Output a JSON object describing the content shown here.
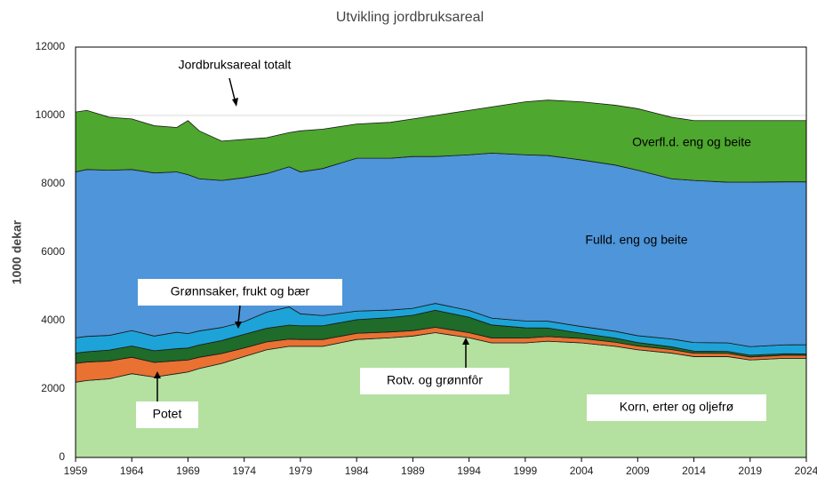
{
  "chart_data": {
    "type": "stacked-area",
    "title": "Utvikling jordbruksareal",
    "ylabel": "1000 dekar",
    "annotation": "Jordbruksareal totalt",
    "x": [
      1959,
      1960,
      1962,
      1964,
      1966,
      1968,
      1969,
      1970,
      1972,
      1974,
      1976,
      1978,
      1979,
      1981,
      1984,
      1987,
      1989,
      1991,
      1994,
      1996,
      1999,
      2001,
      2004,
      2007,
      2009,
      2012,
      2014,
      2017,
      2019,
      2022,
      2024
    ],
    "series": [
      {
        "name": "Korn, erter og oljefrø",
        "color": "#b4e0a0",
        "values": [
          2200,
          2250,
          2300,
          2450,
          2350,
          2450,
          2500,
          2600,
          2750,
          2950,
          3150,
          3250,
          3250,
          3250,
          3450,
          3500,
          3550,
          3650,
          3500,
          3350,
          3350,
          3400,
          3350,
          3250,
          3150,
          3050,
          2950,
          2950,
          2850,
          2900,
          2900
        ]
      },
      {
        "name": "Potet",
        "color": "#e97132",
        "values": [
          550,
          540,
          520,
          480,
          430,
          380,
          350,
          330,
          290,
          250,
          230,
          210,
          200,
          200,
          180,
          170,
          160,
          155,
          150,
          145,
          140,
          135,
          130,
          120,
          110,
          105,
          100,
          95,
          90,
          88,
          85
        ]
      },
      {
        "name": "Rotv. og grønnfôr",
        "color": "#1e6b2a",
        "values": [
          300,
          300,
          320,
          330,
          340,
          350,
          350,
          360,
          380,
          400,
          400,
          410,
          400,
          400,
          400,
          420,
          450,
          500,
          450,
          380,
          300,
          250,
          150,
          120,
          100,
          80,
          60,
          55,
          50,
          45,
          40
        ]
      },
      {
        "name": "Grønnsaker, frukt og bær",
        "color": "#1ea3d8",
        "values": [
          450,
          450,
          430,
          450,
          430,
          480,
          420,
          410,
          380,
          370,
          470,
          530,
          350,
          300,
          250,
          220,
          200,
          200,
          200,
          200,
          200,
          200,
          200,
          200,
          200,
          230,
          250,
          250,
          250,
          260,
          270
        ]
      },
      {
        "name": "Fulld. eng og beite",
        "color": "#4e95d9",
        "values": [
          4850,
          4880,
          4830,
          4710,
          4770,
          4690,
          4650,
          4450,
          4300,
          4210,
          4050,
          4100,
          4150,
          4300,
          4470,
          4440,
          4440,
          4295,
          4550,
          4825,
          4860,
          4845,
          4870,
          4860,
          4840,
          4685,
          4740,
          4700,
          4810,
          4767,
          4765
        ]
      },
      {
        "name": "Overfl.d. eng og beite",
        "color": "#4ea72e",
        "values": [
          1750,
          1730,
          1550,
          1480,
          1380,
          1300,
          1580,
          1400,
          1150,
          1120,
          1050,
          1000,
          1200,
          1150,
          1000,
          1050,
          1100,
          1200,
          1300,
          1350,
          1550,
          1620,
          1700,
          1750,
          1800,
          1800,
          1750,
          1800,
          1800,
          1790,
          1790
        ]
      }
    ],
    "xlim": [
      1959,
      2024
    ],
    "xticks": [
      1959,
      1964,
      1969,
      1974,
      1979,
      1984,
      1989,
      1994,
      1999,
      2004,
      2009,
      2014,
      2019,
      2024
    ],
    "ylim": [
      0,
      12000
    ],
    "yticks": [
      0,
      2000,
      4000,
      6000,
      8000,
      10000,
      12000
    ],
    "grid": true
  }
}
